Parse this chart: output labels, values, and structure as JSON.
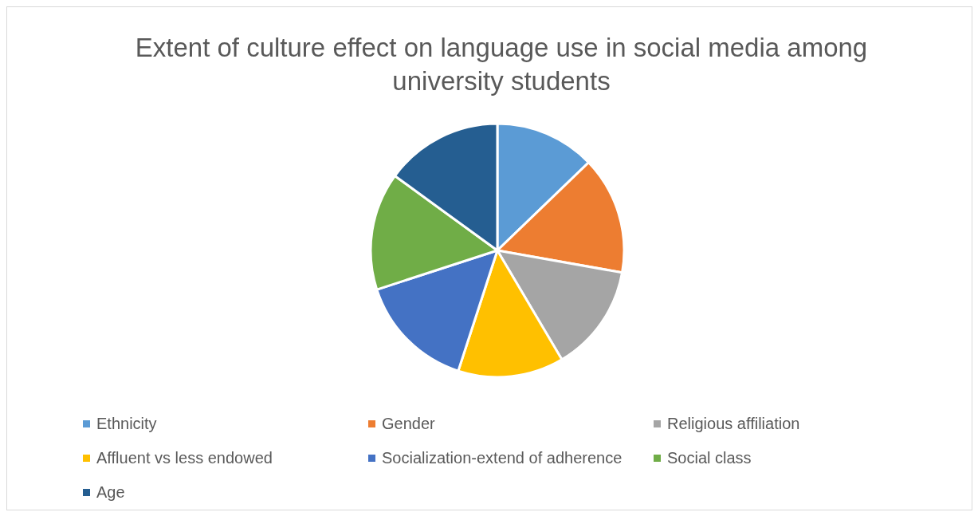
{
  "chart_data": {
    "type": "pie",
    "title": "Extent of culture effect on language use in social media among university students",
    "categories": [
      "Ethnicity",
      "Gender",
      "Religious affiliation",
      "Affluent vs less endowed",
      "Socialization-extend of adherence",
      "Social class",
      "Age"
    ],
    "values": [
      12.8,
      15,
      13.7,
      13.5,
      15,
      15,
      15
    ],
    "colors": [
      "#5b9bd5",
      "#ed7d31",
      "#a5a5a5",
      "#ffc000",
      "#4472c4",
      "#70ad47",
      "#255e91"
    ],
    "legend": "bottom"
  }
}
